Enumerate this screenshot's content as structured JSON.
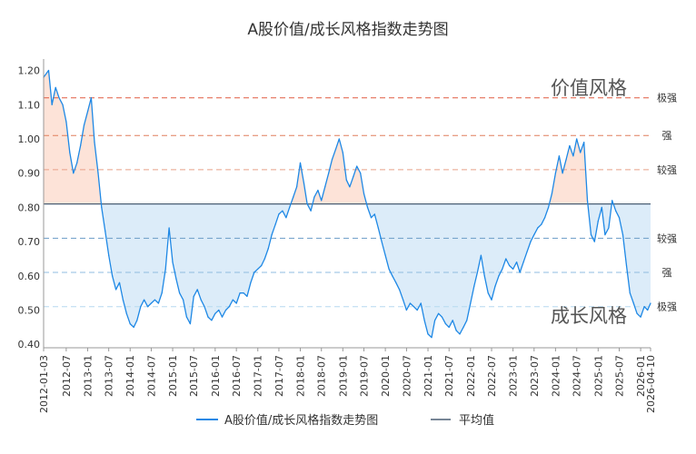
{
  "chart_data": {
    "type": "line",
    "title": "A股价值/成长风格指数走势图",
    "series": [
      {
        "name": "A股价值/成长风格指数走势图",
        "color": "#1e88e5",
        "points": [
          [
            "2012-01-03",
            1.18
          ],
          [
            "2012-02",
            1.2
          ],
          [
            "2012-03",
            1.1
          ],
          [
            "2012-04",
            1.15
          ],
          [
            "2012-05",
            1.12
          ],
          [
            "2012-06",
            1.1
          ],
          [
            "2012-07",
            1.05
          ],
          [
            "2012-08",
            0.96
          ],
          [
            "2012-09",
            0.9
          ],
          [
            "2012-10",
            0.93
          ],
          [
            "2012-11",
            0.98
          ],
          [
            "2012-12",
            1.04
          ],
          [
            "2013-01",
            1.08
          ],
          [
            "2013-02",
            1.12
          ],
          [
            "2013-03",
            0.99
          ],
          [
            "2013-04",
            0.9
          ],
          [
            "2013-05",
            0.8
          ],
          [
            "2013-06",
            0.73
          ],
          [
            "2013-07",
            0.66
          ],
          [
            "2013-08",
            0.6
          ],
          [
            "2013-09",
            0.56
          ],
          [
            "2013-10",
            0.58
          ],
          [
            "2013-11",
            0.53
          ],
          [
            "2013-12",
            0.49
          ],
          [
            "2014-01",
            0.46
          ],
          [
            "2014-02",
            0.45
          ],
          [
            "2014-03",
            0.47
          ],
          [
            "2014-04",
            0.51
          ],
          [
            "2014-05",
            0.53
          ],
          [
            "2014-06",
            0.51
          ],
          [
            "2014-07",
            0.52
          ],
          [
            "2014-08",
            0.53
          ],
          [
            "2014-09",
            0.52
          ],
          [
            "2014-10",
            0.55
          ],
          [
            "2014-11",
            0.62
          ],
          [
            "2014-12",
            0.74
          ],
          [
            "2015-01",
            0.64
          ],
          [
            "2015-02",
            0.59
          ],
          [
            "2015-03",
            0.55
          ],
          [
            "2015-04",
            0.53
          ],
          [
            "2015-05",
            0.48
          ],
          [
            "2015-06",
            0.46
          ],
          [
            "2015-07",
            0.54
          ],
          [
            "2015-08",
            0.56
          ],
          [
            "2015-09",
            0.53
          ],
          [
            "2015-10",
            0.51
          ],
          [
            "2015-11",
            0.48
          ],
          [
            "2015-12",
            0.47
          ],
          [
            "2016-01",
            0.49
          ],
          [
            "2016-02",
            0.5
          ],
          [
            "2016-03",
            0.48
          ],
          [
            "2016-04",
            0.5
          ],
          [
            "2016-05",
            0.51
          ],
          [
            "2016-06",
            0.53
          ],
          [
            "2016-07",
            0.52
          ],
          [
            "2016-08",
            0.55
          ],
          [
            "2016-09",
            0.55
          ],
          [
            "2016-10",
            0.54
          ],
          [
            "2016-11",
            0.58
          ],
          [
            "2016-12",
            0.61
          ],
          [
            "2017-01",
            0.62
          ],
          [
            "2017-02",
            0.63
          ],
          [
            "2017-03",
            0.65
          ],
          [
            "2017-04",
            0.68
          ],
          [
            "2017-05",
            0.72
          ],
          [
            "2017-06",
            0.75
          ],
          [
            "2017-07",
            0.78
          ],
          [
            "2017-08",
            0.79
          ],
          [
            "2017-09",
            0.77
          ],
          [
            "2017-10",
            0.8
          ],
          [
            "2017-11",
            0.83
          ],
          [
            "2017-12",
            0.86
          ],
          [
            "2018-01",
            0.93
          ],
          [
            "2018-02",
            0.87
          ],
          [
            "2018-03",
            0.81
          ],
          [
            "2018-04",
            0.79
          ],
          [
            "2018-05",
            0.83
          ],
          [
            "2018-06",
            0.85
          ],
          [
            "2018-07",
            0.82
          ],
          [
            "2018-08",
            0.86
          ],
          [
            "2018-09",
            0.9
          ],
          [
            "2018-10",
            0.94
          ],
          [
            "2018-11",
            0.97
          ],
          [
            "2018-12",
            1.0
          ],
          [
            "2019-01",
            0.96
          ],
          [
            "2019-02",
            0.88
          ],
          [
            "2019-03",
            0.86
          ],
          [
            "2019-04",
            0.89
          ],
          [
            "2019-05",
            0.92
          ],
          [
            "2019-06",
            0.9
          ],
          [
            "2019-07",
            0.84
          ],
          [
            "2019-08",
            0.8
          ],
          [
            "2019-09",
            0.77
          ],
          [
            "2019-10",
            0.78
          ],
          [
            "2019-11",
            0.74
          ],
          [
            "2019-12",
            0.7
          ],
          [
            "2020-01",
            0.66
          ],
          [
            "2020-02",
            0.62
          ],
          [
            "2020-03",
            0.6
          ],
          [
            "2020-04",
            0.58
          ],
          [
            "2020-05",
            0.56
          ],
          [
            "2020-06",
            0.53
          ],
          [
            "2020-07",
            0.5
          ],
          [
            "2020-08",
            0.52
          ],
          [
            "2020-09",
            0.51
          ],
          [
            "2020-10",
            0.5
          ],
          [
            "2020-11",
            0.52
          ],
          [
            "2020-12",
            0.47
          ],
          [
            "2021-01",
            0.43
          ],
          [
            "2021-02",
            0.42
          ],
          [
            "2021-03",
            0.47
          ],
          [
            "2021-04",
            0.49
          ],
          [
            "2021-05",
            0.48
          ],
          [
            "2021-06",
            0.46
          ],
          [
            "2021-07",
            0.45
          ],
          [
            "2021-08",
            0.47
          ],
          [
            "2021-09",
            0.44
          ],
          [
            "2021-10",
            0.43
          ],
          [
            "2021-11",
            0.45
          ],
          [
            "2021-12",
            0.47
          ],
          [
            "2022-01",
            0.52
          ],
          [
            "2022-02",
            0.57
          ],
          [
            "2022-03",
            0.61
          ],
          [
            "2022-04",
            0.66
          ],
          [
            "2022-05",
            0.6
          ],
          [
            "2022-06",
            0.55
          ],
          [
            "2022-07",
            0.53
          ],
          [
            "2022-08",
            0.57
          ],
          [
            "2022-09",
            0.6
          ],
          [
            "2022-10",
            0.62
          ],
          [
            "2022-11",
            0.65
          ],
          [
            "2022-12",
            0.63
          ],
          [
            "2023-01",
            0.62
          ],
          [
            "2023-02",
            0.64
          ],
          [
            "2023-03",
            0.61
          ],
          [
            "2023-04",
            0.64
          ],
          [
            "2023-05",
            0.67
          ],
          [
            "2023-06",
            0.7
          ],
          [
            "2023-07",
            0.72
          ],
          [
            "2023-08",
            0.74
          ],
          [
            "2023-09",
            0.75
          ],
          [
            "2023-10",
            0.77
          ],
          [
            "2023-11",
            0.8
          ],
          [
            "2023-12",
            0.84
          ],
          [
            "2024-01",
            0.9
          ],
          [
            "2024-02",
            0.95
          ],
          [
            "2024-03",
            0.9
          ],
          [
            "2024-04",
            0.94
          ],
          [
            "2024-05",
            0.98
          ],
          [
            "2024-06",
            0.95
          ],
          [
            "2024-07",
            1.0
          ],
          [
            "2024-08",
            0.96
          ],
          [
            "2024-09",
            0.99
          ],
          [
            "2024-10",
            0.82
          ],
          [
            "2024-11",
            0.72
          ],
          [
            "2024-12",
            0.7
          ],
          [
            "2025-01",
            0.76
          ],
          [
            "2025-02",
            0.8
          ],
          [
            "2025-03",
            0.72
          ],
          [
            "2025-04",
            0.74
          ],
          [
            "2025-05",
            0.82
          ],
          [
            "2025-06",
            0.79
          ],
          [
            "2025-07",
            0.77
          ],
          [
            "2025-08",
            0.72
          ],
          [
            "2025-09",
            0.63
          ],
          [
            "2025-10",
            0.55
          ],
          [
            "2025-11",
            0.52
          ],
          [
            "2025-12",
            0.49
          ],
          [
            "2026-01",
            0.48
          ],
          [
            "2026-02",
            0.51
          ],
          [
            "2026-03",
            0.5
          ],
          [
            "2026-04-10",
            0.52
          ]
        ]
      }
    ],
    "mean": {
      "label": "平均值",
      "value": 0.81,
      "color": "#4a5f74"
    },
    "reference_lines": [
      {
        "value": 1.12,
        "label": "极强",
        "color": "#e05a40"
      },
      {
        "value": 1.01,
        "label": "强",
        "color": "#e07e5a"
      },
      {
        "value": 0.91,
        "label": "较强",
        "color": "#e8a088"
      },
      {
        "value": 0.71,
        "label": "较强",
        "color": "#6a9cc6"
      },
      {
        "value": 0.61,
        "label": "强",
        "color": "#8fbde0"
      },
      {
        "value": 0.51,
        "label": "极强",
        "color": "#b6d9ef"
      }
    ],
    "annotations": {
      "value_style": "价值风格",
      "growth_style": "成长风格"
    },
    "fills": {
      "above_mean": "#fde3d8",
      "below_mean": "#dcecf9"
    },
    "x_ticks": [
      "2012-01-03",
      "2012-07",
      "2013-01",
      "2013-07",
      "2014-01",
      "2014-07",
      "2015-01",
      "2015-07",
      "2016-01",
      "2016-07",
      "2017-01",
      "2017-07",
      "2018-01",
      "2018-07",
      "2019-01",
      "2019-07",
      "2020-01",
      "2020-07",
      "2021-01",
      "2021-07",
      "2022-01",
      "2022-07",
      "2023-01",
      "2023-07",
      "2024-01",
      "2024-07",
      "2025-01",
      "2025-07",
      "2026-01",
      "2026-04-10"
    ],
    "x_range": [
      "2012-01-03",
      "2026-04-10"
    ],
    "y_ticks": [
      "0.40",
      "0.50",
      "0.60",
      "0.70",
      "0.80",
      "0.90",
      "1.00",
      "1.10",
      "1.20"
    ],
    "ylim": [
      0.39,
      1.22
    ],
    "legend_position": "bottom-center",
    "grid": false
  }
}
